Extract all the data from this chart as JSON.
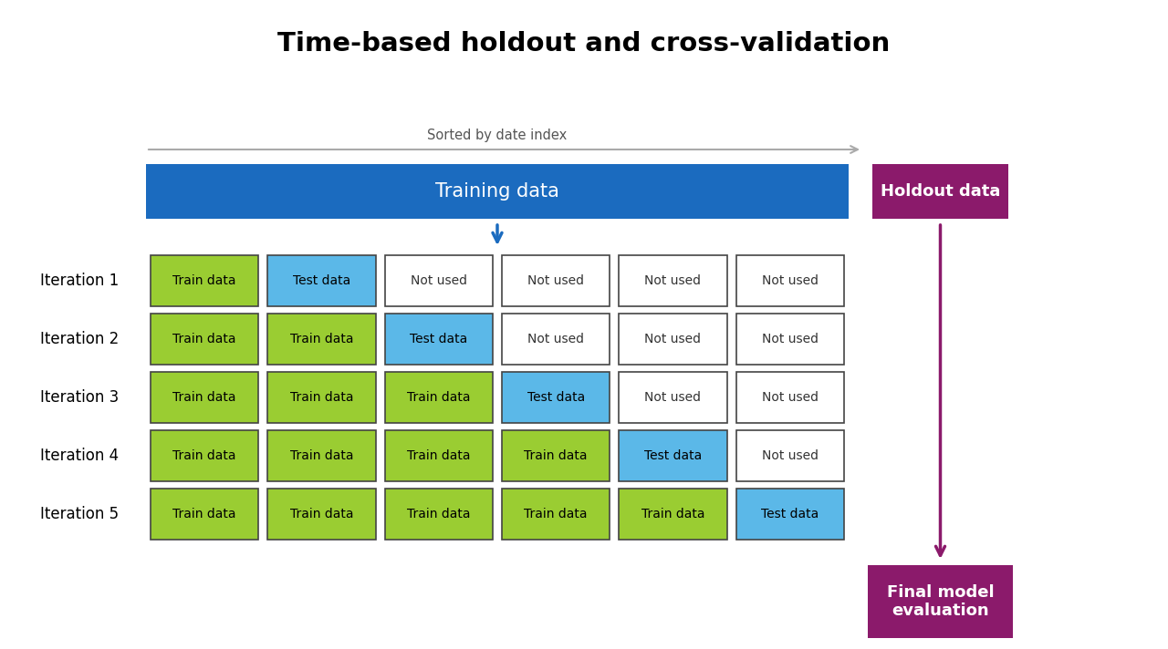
{
  "title": "Time-based holdout and cross-validation",
  "title_fontsize": 21,
  "title_fontweight": "bold",
  "sorted_label": "Sorted by date index",
  "background_color": "#ffffff",
  "training_bar": {
    "label": "Training data",
    "color": "#1b6bbf",
    "text_color": "#ffffff",
    "fontsize": 15
  },
  "holdout_bar": {
    "label": "Holdout data",
    "color": "#8b1a6b",
    "text_color": "#ffffff",
    "fontsize": 13
  },
  "final_box": {
    "label": "Final model\nevaluation",
    "color": "#8b1a6b",
    "text_color": "#ffffff",
    "fontsize": 13
  },
  "iterations": [
    {
      "label": "Iteration 1",
      "train": [
        0
      ],
      "test": 1
    },
    {
      "label": "Iteration 2",
      "train": [
        0,
        1
      ],
      "test": 2
    },
    {
      "label": "Iteration 3",
      "train": [
        0,
        1,
        2
      ],
      "test": 3
    },
    {
      "label": "Iteration 4",
      "train": [
        0,
        1,
        2,
        3
      ],
      "test": 4
    },
    {
      "label": "Iteration 5",
      "train": [
        0,
        1,
        2,
        3,
        4
      ],
      "test": 5
    }
  ],
  "num_folds": 6,
  "train_color": "#9acd32",
  "test_color": "#5bb8e8",
  "notused_color": "#ffffff",
  "cell_text_color": "#333333",
  "cell_fontsize": 10,
  "iter_label_fontsize": 12,
  "arrow_color_blue": "#1b6bbf",
  "arrow_color_purple": "#8b1a6b",
  "arrow_color_gray": "#aaaaaa"
}
